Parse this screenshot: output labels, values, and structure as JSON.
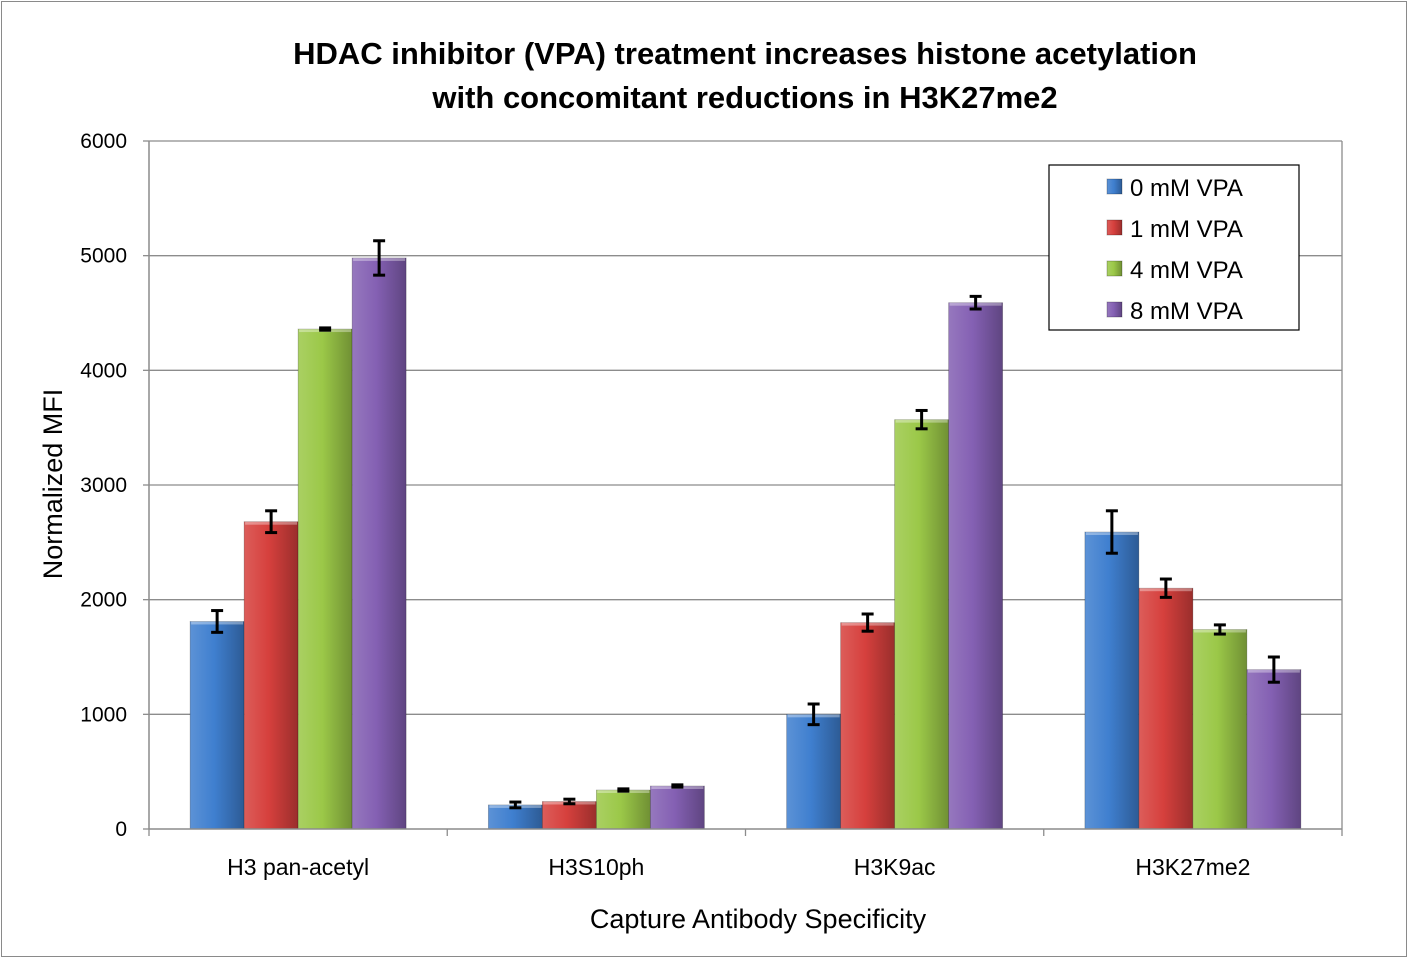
{
  "chart_data": {
    "type": "bar",
    "title": "HDAC inhibitor (VPA) treatment increases histone acetylation with concomitant reductions in H3K27me2",
    "title_lines": [
      "HDAC inhibitor (VPA) treatment increases histone acetylation",
      "with concomitant reductions in H3K27me2"
    ],
    "xlabel": "Capture Antibody Specificity",
    "ylabel": "Normalized MFI",
    "ylim": [
      0,
      6000
    ],
    "yticks": [
      0,
      1000,
      2000,
      3000,
      4000,
      5000,
      6000
    ],
    "grid": true,
    "legend_position": "top-right",
    "categories": [
      "H3 pan-acetyl",
      "H3S10ph",
      "H3K9ac",
      "H3K27me2"
    ],
    "series": [
      {
        "name": "0 mM VPA",
        "color": "#3f7fcf",
        "values": [
          1810,
          210,
          1000,
          2590
        ],
        "errors": [
          95,
          25,
          90,
          185
        ]
      },
      {
        "name": "1 mM VPA",
        "color": "#d6403d",
        "values": [
          2680,
          240,
          1800,
          2100
        ],
        "errors": [
          95,
          20,
          75,
          80
        ]
      },
      {
        "name": "4 mM VPA",
        "color": "#9bc848",
        "values": [
          4360,
          340,
          3570,
          1740
        ],
        "errors": [
          10,
          10,
          80,
          40
        ]
      },
      {
        "name": "8 mM VPA",
        "color": "#8460b3",
        "values": [
          4980,
          375,
          4590,
          1390
        ],
        "errors": [
          150,
          10,
          55,
          110
        ]
      }
    ]
  }
}
